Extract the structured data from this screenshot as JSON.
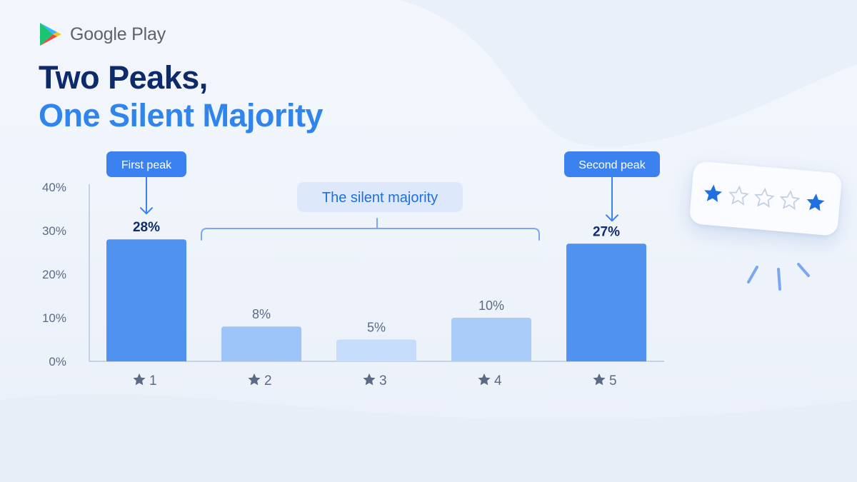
{
  "brand": {
    "name": "Google Play"
  },
  "headline": {
    "line1": "Two Peaks,",
    "line2": "One Silent Majority"
  },
  "chart_data": {
    "type": "bar",
    "categories": [
      "1",
      "2",
      "3",
      "4",
      "5"
    ],
    "category_icon": "star-icon",
    "values": [
      28,
      8,
      5,
      10,
      27
    ],
    "value_labels": [
      "28%",
      "8%",
      "5%",
      "10%",
      "27%"
    ],
    "yticks": [
      0,
      10,
      20,
      30,
      40
    ],
    "ytick_labels": [
      "0%",
      "10%",
      "20%",
      "30%",
      "40%"
    ],
    "ylim": [
      0,
      40
    ],
    "grid": false,
    "annotations": {
      "first_peak": "First peak",
      "second_peak": "Second peak",
      "silent_majority": "The silent majority"
    },
    "colors": {
      "peak": "#4f92ef",
      "silent": [
        "#9ec5f8",
        "#c6ddfb",
        "#a9ccf8"
      ],
      "label_dark": "#0f2d6e",
      "label_muted": "#5b6b85",
      "accent": "#3b82f0"
    }
  },
  "rating_card": {
    "stars": [
      "filled",
      "empty",
      "empty",
      "empty",
      "filled"
    ],
    "icon": "star-icon"
  }
}
